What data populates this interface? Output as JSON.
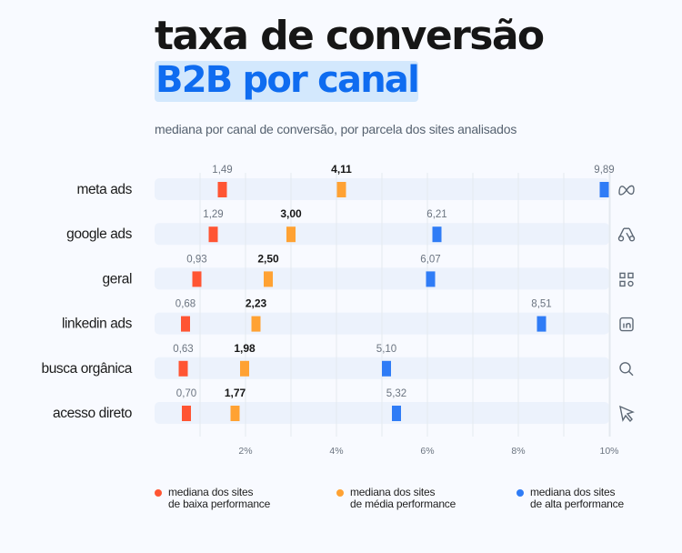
{
  "header": {
    "title_line1": "taxa de conversão",
    "title_line2": "B2B por canal",
    "subtitle": "mediana por canal de conversão, por parcela dos sites analisados"
  },
  "colors": {
    "low": "#ff5533",
    "mid": "#ffa233",
    "high": "#2f7cf6",
    "track": "#ecf2fc",
    "highlight": "#d3e8fd",
    "accent": "#0f6cf0"
  },
  "legend": [
    {
      "key": "low",
      "line1": "mediana dos sites",
      "line2": "de baixa performance"
    },
    {
      "key": "mid",
      "line1": "mediana dos sites",
      "line2": "de média performance"
    },
    {
      "key": "high",
      "line1": "mediana dos sites",
      "line2": "de alta performance"
    }
  ],
  "chart_data": {
    "type": "scatter",
    "title": "taxa de conversão B2B por canal",
    "subtitle": "mediana por canal de conversão, por parcela dos sites analisados",
    "xlabel": "",
    "ylabel": "",
    "xlim": [
      0,
      10
    ],
    "x_unit": "%",
    "x_ticks": [
      2,
      4,
      6,
      8,
      10
    ],
    "x_tick_labels": [
      "2%",
      "4%",
      "6%",
      "8%",
      "10%"
    ],
    "grid": "vertical, every 1%",
    "legend_position": "bottom",
    "categories": [
      "meta ads",
      "google ads",
      "geral",
      "linkedin ads",
      "busca orgânica",
      "acesso direto"
    ],
    "category_icons": [
      "meta-icon",
      "google-ads-icon",
      "grid-apps-icon",
      "linkedin-icon",
      "search-icon",
      "cursor-icon"
    ],
    "series": [
      {
        "name": "mediana dos sites de baixa performance",
        "key": "low",
        "values": [
          1.49,
          1.29,
          0.93,
          0.68,
          0.63,
          0.7
        ],
        "labels": [
          "1,49",
          "1,29",
          "0,93",
          "0,68",
          "0,63",
          "0,70"
        ]
      },
      {
        "name": "mediana dos sites de média performance",
        "key": "mid",
        "values": [
          4.11,
          3.0,
          2.5,
          2.23,
          1.98,
          1.77
        ],
        "labels": [
          "4,11",
          "3,00",
          "2,50",
          "2,23",
          "1,98",
          "1,77"
        ]
      },
      {
        "name": "mediana dos sites de alta performance",
        "key": "high",
        "values": [
          9.89,
          6.21,
          6.07,
          8.51,
          5.1,
          5.32
        ],
        "labels": [
          "9,89",
          "6,21",
          "6,07",
          "8,51",
          "5,10",
          "5,32"
        ]
      }
    ]
  }
}
